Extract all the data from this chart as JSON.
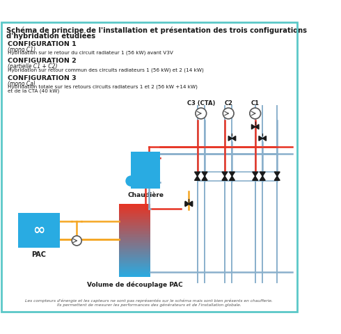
{
  "title_line1": "Schéma de principe de l'installation et présentation des trois configurations",
  "title_line2": "d'hybridation étudiées",
  "config1_title": "CONFIGURATION 1",
  "config1_sub": "(mono C1)",
  "config1_desc": "Hybridation sur le retour du circuit radiateur 1 (56 kW) avant V3V",
  "config1_desc_bold": "circuit radiateur",
  "config2_title": "CONFIGURATION 2",
  "config2_sub": "(partielle C1 + C2)",
  "config2_desc": "Hybridation sur retour commun des circuits radiateurs 1 (56 kW) et 2 (14 kW)",
  "config3_title": "CONFIGURATION 3",
  "config3_sub": "(mono Ca)",
  "config3_desc1": "Hybridation totale sur les retours circuits radiateurs 1 et 2 (56 kW +14 kW)",
  "config3_desc2": "et de la CTA (40 kW)",
  "label_chaudiere": "Chaudière",
  "label_pac": "PAC",
  "label_volume": "Volume de découplage PAC",
  "label_c1": "C1",
  "label_c2": "C2",
  "label_c3": "C3 (CTA)",
  "footer1": "Les compteurs d'énergie et les capteurs ne sont pas représentés sur le schéma mais sont bien présents en chaufferie.",
  "footer2": "Ils permettent de mesurer les performances des générateurs et de l'installation globale.",
  "bg_color": "#ffffff",
  "border_color": "#5bc8c8",
  "blue_color": "#29abe2",
  "red_color": "#e63323",
  "orange_color": "#f5a623",
  "pipe_gray": "#8ab0cc",
  "pipe_red": "#e63323",
  "pipe_blue": "#8ab0cc",
  "dark_color": "#1a1a1a",
  "valve_color": "#1a1a1a"
}
